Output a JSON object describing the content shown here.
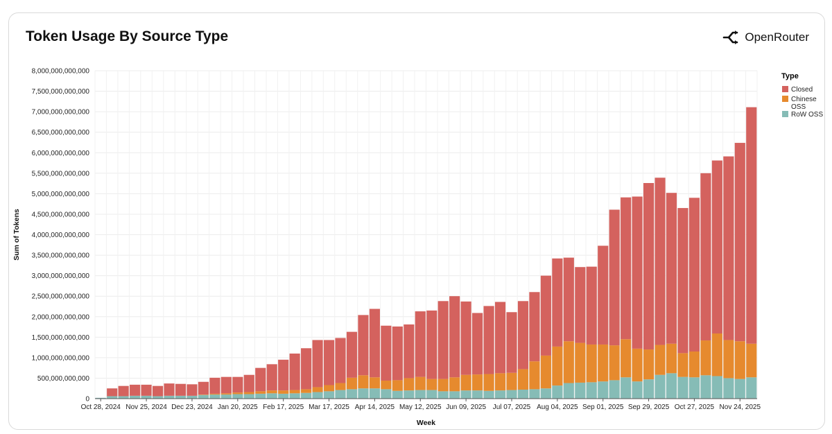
{
  "page": {
    "title": "Token Usage By Source Type",
    "brand": "OpenRouter",
    "logo_icon": "openrouter-logo-icon"
  },
  "chart_data": {
    "type": "bar",
    "stacked": true,
    "title": "Token Usage By Source Type",
    "xlabel": "Week",
    "ylabel": "Sum of Tokens",
    "ylim": [
      0,
      8000000000000
    ],
    "yticks": [
      0,
      500000000000,
      1000000000000,
      1500000000000,
      2000000000000,
      2500000000000,
      3000000000000,
      3500000000000,
      4000000000000,
      4500000000000,
      5000000000000,
      5500000000000,
      6000000000000,
      6500000000000,
      7000000000000,
      7500000000000,
      8000000000000
    ],
    "ytick_labels": [
      "0",
      "500,000,000,000",
      "1,000,000,000,000",
      "1,500,000,000,000",
      "2,000,000,000,000",
      "2,500,000,000,000",
      "3,000,000,000,000",
      "3,500,000,000,000",
      "4,000,000,000,000",
      "4,500,000,000,000",
      "5,000,000,000,000",
      "5,500,000,000,000",
      "6,000,000,000,000",
      "6,500,000,000,000",
      "7,000,000,000,000",
      "7,500,000,000,000",
      "8,000,000,000,000"
    ],
    "xtick_labels": [
      {
        "index": 0,
        "label": "Oct 28, 2024"
      },
      {
        "index": 4,
        "label": "Nov 25, 2024"
      },
      {
        "index": 8,
        "label": "Dec 23, 2024"
      },
      {
        "index": 12,
        "label": "Jan 20, 2025"
      },
      {
        "index": 16,
        "label": "Feb 17, 2025"
      },
      {
        "index": 20,
        "label": "Mar 17, 2025"
      },
      {
        "index": 24,
        "label": "Apr 14, 2025"
      },
      {
        "index": 28,
        "label": "May 12, 2025"
      },
      {
        "index": 32,
        "label": "Jun 09, 2025"
      },
      {
        "index": 36,
        "label": "Jul 07, 2025"
      },
      {
        "index": 40,
        "label": "Aug 04, 2025"
      },
      {
        "index": 44,
        "label": "Sep 01, 2025"
      },
      {
        "index": 48,
        "label": "Sep 29, 2025"
      },
      {
        "index": 52,
        "label": "Oct 27, 2025"
      },
      {
        "index": 56,
        "label": "Nov 24, 2025"
      }
    ],
    "grid": true,
    "legend": {
      "title": "Type",
      "position": "right"
    },
    "series": [
      {
        "name": "RoW OSS",
        "color": "#86bcb6",
        "values": [
          20000000000,
          60000000000,
          60000000000,
          70000000000,
          70000000000,
          60000000000,
          70000000000,
          70000000000,
          70000000000,
          90000000000,
          100000000000,
          100000000000,
          110000000000,
          110000000000,
          120000000000,
          130000000000,
          120000000000,
          130000000000,
          140000000000,
          160000000000,
          180000000000,
          210000000000,
          230000000000,
          250000000000,
          250000000000,
          230000000000,
          190000000000,
          200000000000,
          210000000000,
          210000000000,
          180000000000,
          180000000000,
          200000000000,
          200000000000,
          190000000000,
          200000000000,
          210000000000,
          220000000000,
          230000000000,
          250000000000,
          320000000000,
          380000000000,
          390000000000,
          400000000000,
          420000000000,
          450000000000,
          520000000000,
          420000000000,
          470000000000,
          580000000000,
          620000000000,
          530000000000,
          520000000000,
          570000000000,
          550000000000,
          500000000000,
          480000000000,
          520000000000
        ]
      },
      {
        "name": "Chinese OSS",
        "color": "#e68a2e",
        "values": [
          0,
          0,
          0,
          0,
          0,
          0,
          0,
          0,
          0,
          10000000000,
          20000000000,
          30000000000,
          40000000000,
          50000000000,
          60000000000,
          70000000000,
          80000000000,
          80000000000,
          90000000000,
          120000000000,
          150000000000,
          170000000000,
          280000000000,
          320000000000,
          270000000000,
          210000000000,
          260000000000,
          300000000000,
          320000000000,
          270000000000,
          300000000000,
          340000000000,
          380000000000,
          390000000000,
          410000000000,
          420000000000,
          420000000000,
          500000000000,
          680000000000,
          800000000000,
          950000000000,
          1020000000000,
          970000000000,
          920000000000,
          900000000000,
          850000000000,
          930000000000,
          800000000000,
          730000000000,
          730000000000,
          720000000000,
          580000000000,
          630000000000,
          850000000000,
          1040000000000,
          930000000000,
          920000000000,
          820000000000
        ]
      },
      {
        "name": "Closed",
        "color": "#d4625e",
        "values": [
          0,
          190000000000,
          250000000000,
          270000000000,
          270000000000,
          250000000000,
          300000000000,
          290000000000,
          280000000000,
          310000000000,
          390000000000,
          400000000000,
          380000000000,
          420000000000,
          570000000000,
          640000000000,
          750000000000,
          890000000000,
          1000000000000,
          1150000000000,
          1100000000000,
          1100000000000,
          1120000000000,
          1470000000000,
          1670000000000,
          1340000000000,
          1310000000000,
          1310000000000,
          1600000000000,
          1670000000000,
          1900000000000,
          1980000000000,
          1790000000000,
          1500000000000,
          1660000000000,
          1740000000000,
          1480000000000,
          1660000000000,
          1690000000000,
          1950000000000,
          2150000000000,
          2040000000000,
          1850000000000,
          1900000000000,
          2410000000000,
          3310000000000,
          3460000000000,
          3710000000000,
          4060000000000,
          4080000000000,
          3680000000000,
          3540000000000,
          3750000000000,
          4080000000000,
          4220000000000,
          4480000000000,
          4840000000000,
          5770000000000
        ]
      }
    ]
  }
}
